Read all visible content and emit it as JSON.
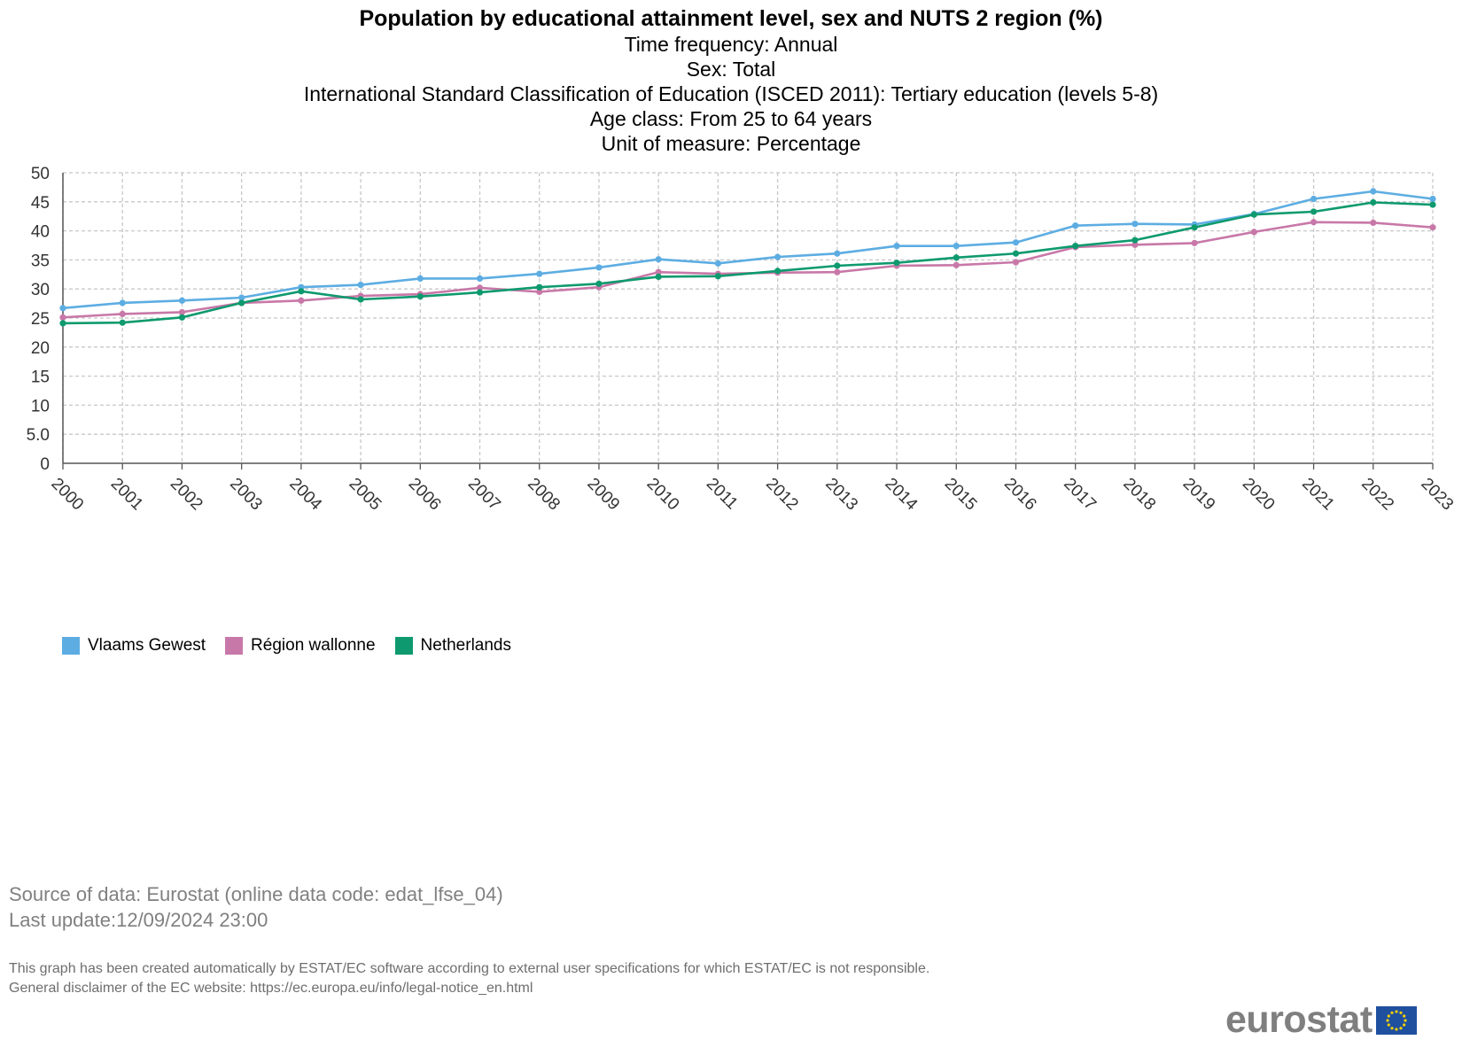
{
  "chart_data": {
    "type": "line",
    "title": "Population by educational attainment level, sex and NUTS 2 region (%)",
    "subtitles": [
      "Time frequency: Annual",
      "Sex: Total",
      "International Standard Classification of Education (ISCED 2011): Tertiary education (levels 5-8)",
      "Age class: From 25 to 64 years",
      "Unit of measure: Percentage"
    ],
    "x": [
      "2000",
      "2001",
      "2002",
      "2003",
      "2004",
      "2005",
      "2006",
      "2007",
      "2008",
      "2009",
      "2010",
      "2011",
      "2012",
      "2013",
      "2014",
      "2015",
      "2016",
      "2017",
      "2018",
      "2019",
      "2020",
      "2021",
      "2022",
      "2023"
    ],
    "yticks": [
      "0",
      "5.0",
      "10",
      "15",
      "20",
      "25",
      "30",
      "35",
      "40",
      "45",
      "50"
    ],
    "ylim": [
      0,
      50
    ],
    "grid": true,
    "legend_position": "bottom-left",
    "series": [
      {
        "name": "Vlaams Gewest",
        "color": "#5dade2",
        "values": [
          26.7,
          27.6,
          28.0,
          28.5,
          30.3,
          30.7,
          31.8,
          31.8,
          32.6,
          33.7,
          35.1,
          34.4,
          35.5,
          36.1,
          37.4,
          37.4,
          38.0,
          40.9,
          41.2,
          41.1,
          42.9,
          45.5,
          46.8,
          45.5
        ]
      },
      {
        "name": "Région wallonne",
        "color": "#c878a8",
        "values": [
          25.1,
          25.7,
          26.0,
          27.6,
          28.0,
          28.8,
          29.1,
          30.2,
          29.5,
          30.3,
          32.9,
          32.6,
          32.8,
          32.9,
          34.0,
          34.1,
          34.6,
          37.2,
          37.6,
          37.9,
          39.8,
          41.5,
          41.4,
          40.6
        ]
      },
      {
        "name": "Netherlands",
        "color": "#0e9a6e",
        "values": [
          24.1,
          24.2,
          25.1,
          27.6,
          29.6,
          28.2,
          28.7,
          29.4,
          30.3,
          30.9,
          32.1,
          32.2,
          33.1,
          34.0,
          34.5,
          35.4,
          36.1,
          37.4,
          38.4,
          40.6,
          42.8,
          43.3,
          44.9,
          44.5
        ]
      }
    ]
  },
  "source": {
    "line1": "Source of data: Eurostat (online data code: edat_lfse_04)",
    "line2": "Last update:12/09/2024 23:00"
  },
  "disclaimer": {
    "line1": "This graph has been created automatically by ESTAT/EC software according to external user specifications for which ESTAT/EC is not responsible.",
    "line2": "General disclaimer of the EC website: https://ec.europa.eu/info/legal-notice_en.html"
  },
  "logo": {
    "text": "eurostat"
  }
}
